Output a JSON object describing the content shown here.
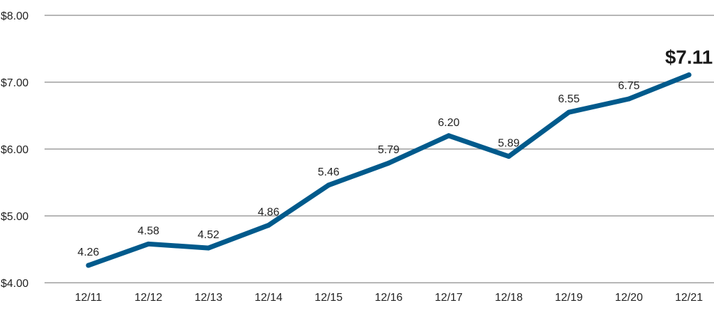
{
  "chart_data": {
    "type": "line",
    "categories": [
      "12/11",
      "12/12",
      "12/13",
      "12/14",
      "12/15",
      "12/16",
      "12/17",
      "12/18",
      "12/19",
      "12/20",
      "12/21"
    ],
    "series": [
      {
        "values": [
          4.26,
          4.58,
          4.52,
          4.86,
          5.46,
          5.79,
          6.2,
          5.89,
          6.55,
          6.75,
          7.11
        ],
        "data_labels": [
          "4.26",
          "4.58",
          "4.52",
          "4.86",
          "5.46",
          "5.79",
          "6.20",
          "5.89",
          "6.55",
          "6.75",
          "$7.11"
        ],
        "color": "#005a8c"
      }
    ],
    "ylim": [
      4,
      8
    ],
    "y_ticks": [
      {
        "value": 8,
        "label": "$8.00"
      },
      {
        "value": 7,
        "label": "$7.00"
      },
      {
        "value": 6,
        "label": "$6.00"
      },
      {
        "value": 5,
        "label": "$5.00"
      },
      {
        "value": 4,
        "label": "$4.00"
      }
    ],
    "grid": true,
    "title": "",
    "xlabel": "",
    "ylabel": ""
  }
}
